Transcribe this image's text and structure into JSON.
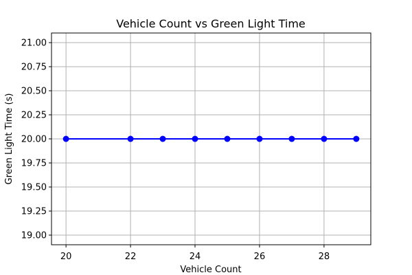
{
  "chart_data": {
    "type": "line",
    "title": "Vehicle Count vs Green Light Time",
    "xlabel": "Vehicle Count",
    "ylabel": "Green Light Time (s)",
    "xlim": [
      19.55,
      29.45
    ],
    "ylim": [
      18.9,
      21.1
    ],
    "xticks": [
      20,
      22,
      24,
      26,
      28
    ],
    "xtick_labels": [
      "20",
      "22",
      "24",
      "26",
      "28"
    ],
    "yticks": [
      19.0,
      19.25,
      19.5,
      19.75,
      20.0,
      20.25,
      20.5,
      20.75,
      21.0
    ],
    "ytick_labels": [
      "19.00",
      "19.25",
      "19.50",
      "19.75",
      "20.00",
      "20.25",
      "20.50",
      "20.75",
      "21.00"
    ],
    "grid": true,
    "series": [
      {
        "name": "Green Light Time",
        "color": "#0000ff",
        "marker": "circle",
        "x": [
          20,
          22,
          23,
          24,
          25,
          26,
          27,
          28,
          29
        ],
        "y": [
          20,
          20,
          20,
          20,
          20,
          20,
          20,
          20,
          20
        ]
      }
    ]
  }
}
